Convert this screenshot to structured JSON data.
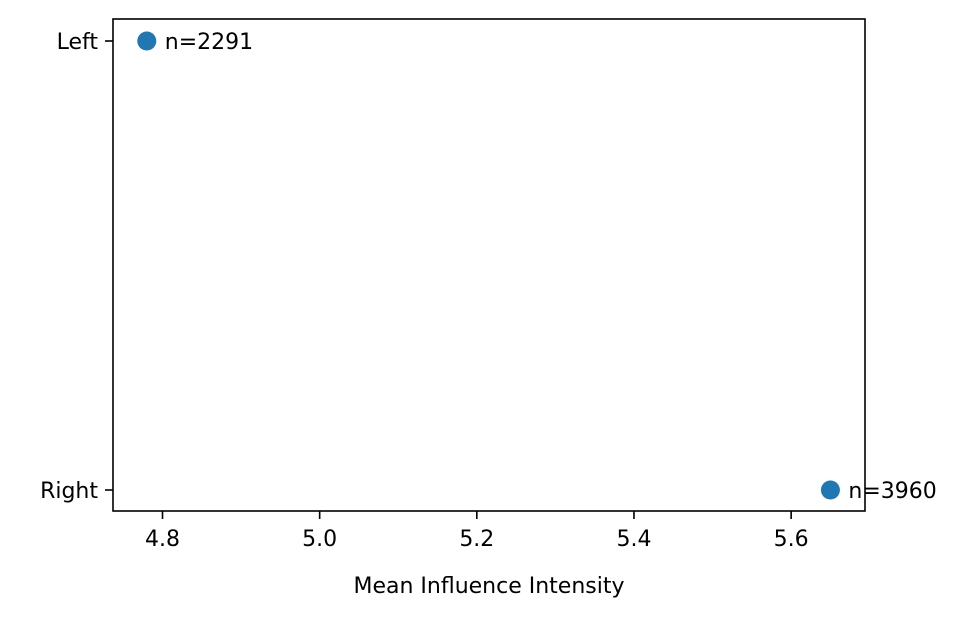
{
  "chart_data": {
    "type": "scatter",
    "title": "",
    "xlabel": "Mean Influence Intensity",
    "ylabel": "",
    "xlim": [
      4.737,
      5.694
    ],
    "x_ticks": [
      4.8,
      5.0,
      5.2,
      5.4,
      5.6
    ],
    "x_tick_labels": [
      "4.8",
      "5.0",
      "5.2",
      "5.4",
      "5.6"
    ],
    "categories": [
      "Left",
      "Right"
    ],
    "points": [
      {
        "category": "Left",
        "x": 4.78,
        "label": "n=2291"
      },
      {
        "category": "Right",
        "x": 5.65,
        "label": "n=3960"
      }
    ],
    "marker_color": "#1f77b4",
    "grid": false,
    "legend": "none"
  }
}
